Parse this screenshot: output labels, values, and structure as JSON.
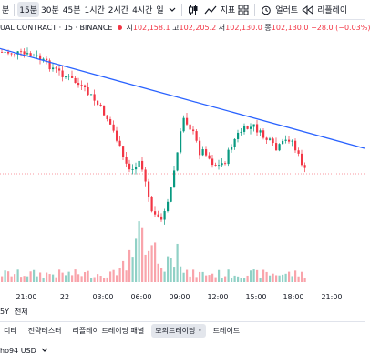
{
  "toolbar": {
    "first": "분",
    "timeframes": [
      "15분",
      "30분",
      "45분",
      "1시간",
      "2시간",
      "4시간",
      "일"
    ],
    "active_index": 0,
    "indicator_label": "지표",
    "alert_label": "얼러트",
    "replay_label": "리플레이"
  },
  "legend": {
    "symbol": "UAL CONTRACT · 15 · BINANCE",
    "open_label": "시",
    "open": "102,158.1",
    "high_label": "고",
    "high": "102,205.2",
    "low_label": "저",
    "low": "102,130.0",
    "close_label": "종",
    "close": "102,130.0",
    "change": "−28.0 (−0.03%)"
  },
  "colors": {
    "up": "#089981",
    "down": "#f23645",
    "trend": "#2962ff",
    "price_line": "#f23645"
  },
  "time_axis": [
    "21:00",
    "22",
    "03:00",
    "06:00",
    "09:00",
    "12:00",
    "15:00",
    "18:00",
    "21:00"
  ],
  "range_bar": {
    "range_5y": "5Y",
    "range_all": "전체"
  },
  "tabs": [
    {
      "label": "디터",
      "active": false
    },
    {
      "label": "전략테스터",
      "active": false
    },
    {
      "label": "리플레이 트레이딩 패널",
      "active": false
    },
    {
      "label": "모의트레이딩",
      "active": true
    },
    {
      "label": "트레이드",
      "active": false
    }
  ],
  "account": {
    "name": "ho94 USD"
  }
}
